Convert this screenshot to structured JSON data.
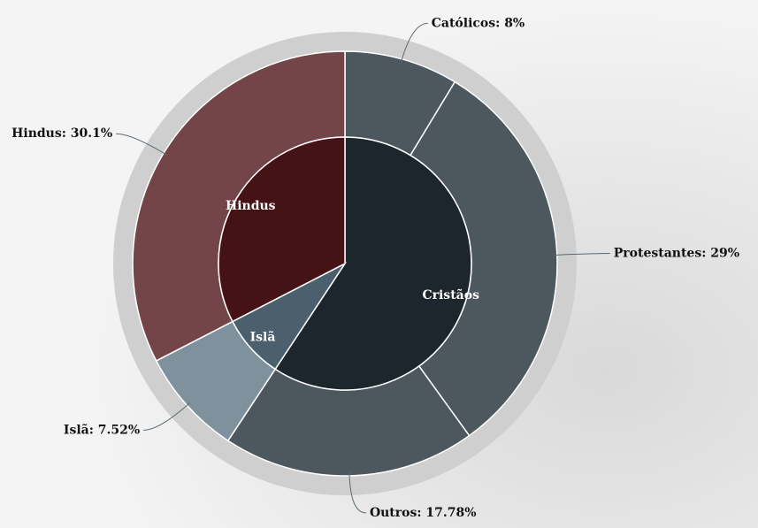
{
  "chart_data": {
    "type": "sunburst",
    "groups": [
      {
        "name": "Cristãos",
        "color": "#1c262c",
        "children": [
          {
            "label": "Católicos: 8%",
            "value": 8,
            "color": "#4c575e"
          },
          {
            "label": "Protestantes: 29%",
            "value": 29,
            "color": "#4c575e"
          },
          {
            "label": "Outros: 17.78%",
            "value": 17.78,
            "color": "#4c575e"
          }
        ]
      },
      {
        "name": "Islã",
        "color": "#4b5f6c",
        "children": [
          {
            "label": "Islã: 7.52%",
            "value": 7.52,
            "color": "#7e919d"
          }
        ]
      },
      {
        "name": "Hindus",
        "color": "#451315",
        "children": [
          {
            "label": "Hindus: 30.1%",
            "value": 30.1,
            "color": "#744548"
          }
        ]
      }
    ]
  }
}
